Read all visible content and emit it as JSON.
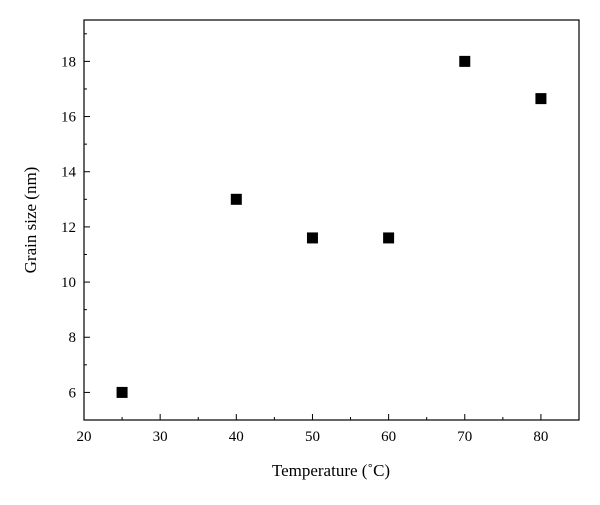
{
  "chart_data": {
    "type": "scatter",
    "xlabel": "Temperature (˚C)",
    "ylabel": "Grain size (nm)",
    "xlim": [
      20,
      85
    ],
    "ylim": [
      5,
      19.5
    ],
    "x_ticks": [
      20,
      30,
      40,
      50,
      60,
      70,
      80
    ],
    "y_ticks": [
      6,
      8,
      10,
      12,
      14,
      16,
      18
    ],
    "x_tick_labels": [
      "20",
      "30",
      "40",
      "50",
      "60",
      "70",
      "80"
    ],
    "y_tick_labels": [
      "6",
      "8",
      "10",
      "12",
      "14",
      "16",
      "18"
    ],
    "grid": false,
    "legend": "none",
    "marker": "filled-square",
    "marker_color": "#000000",
    "series": [
      {
        "x": [
          25,
          40,
          50,
          60,
          70,
          80
        ],
        "y": [
          6.0,
          13.0,
          11.6,
          11.6,
          18.0,
          16.65
        ]
      }
    ]
  }
}
